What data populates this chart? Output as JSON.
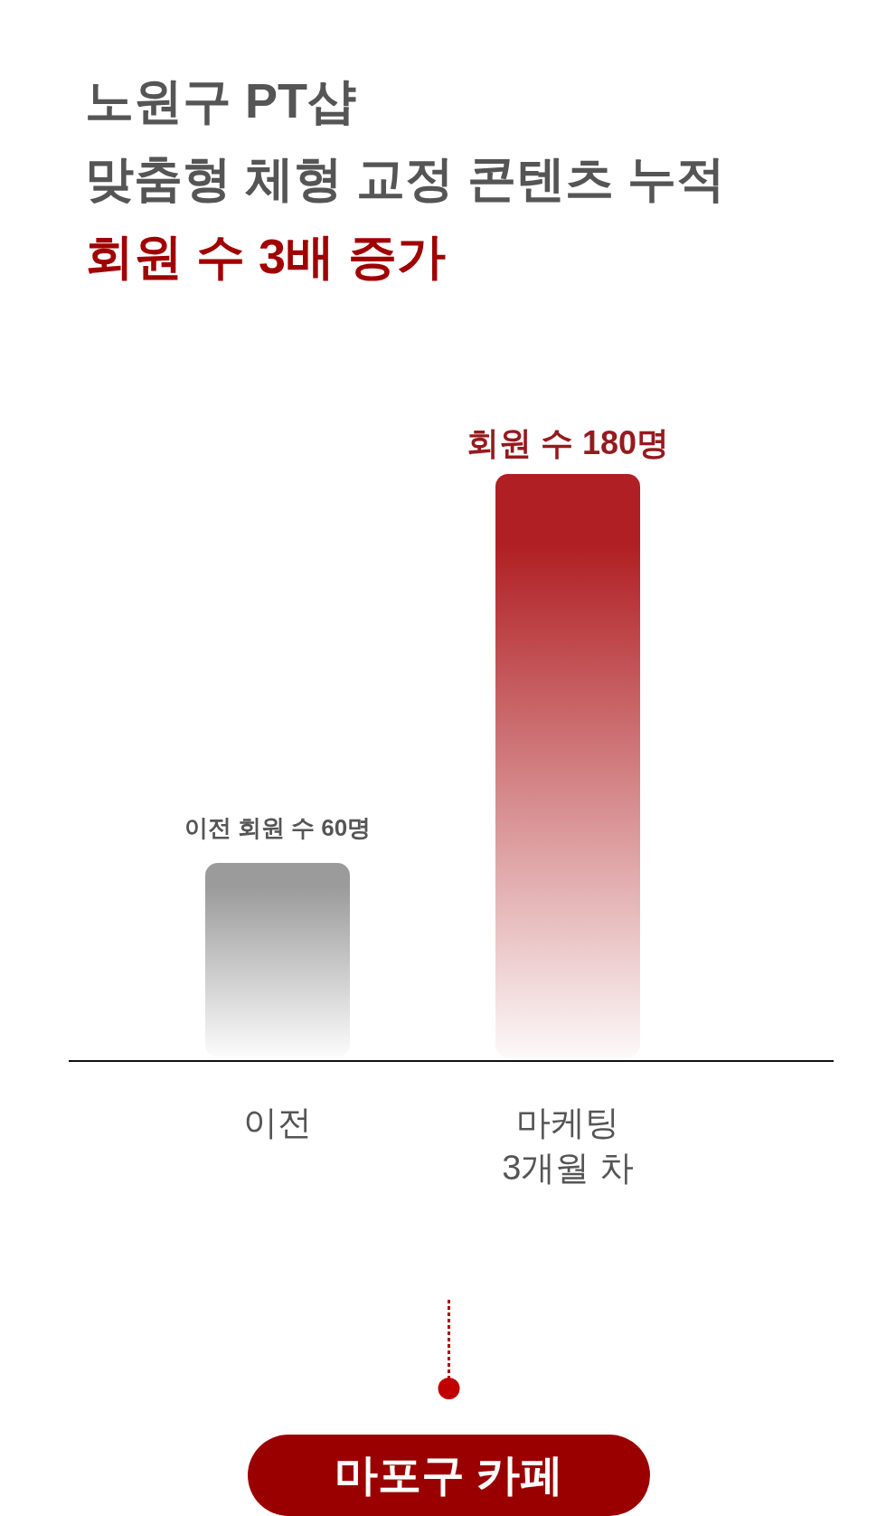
{
  "chart_data": {
    "type": "bar",
    "title": "노원구 PT샵\n맞춤형 체형 교정 콘텐츠 누적",
    "subtitle": "회원 수 3배 증가",
    "categories": [
      "이전",
      "마케팅 3개월 차"
    ],
    "values": [
      60,
      180
    ],
    "colors": [
      "#9b9b9b",
      "#b01f23"
    ],
    "value_labels": [
      "이전 회원 수 60명",
      "회원 수 180명"
    ],
    "annotations": [
      "마포구 카페"
    ]
  }
}
